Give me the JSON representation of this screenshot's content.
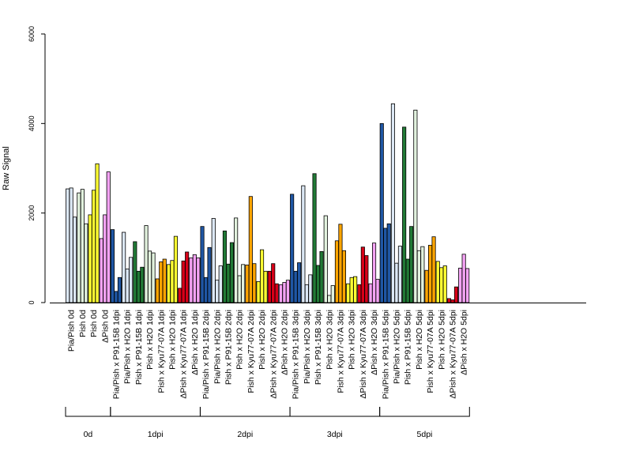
{
  "chart_data": {
    "type": "bar",
    "title": "",
    "xlabel": "",
    "ylabel": "Raw Signal",
    "ylim": [
      0,
      6000
    ],
    "y_ticks": [
      0,
      2000,
      4000,
      6000
    ],
    "grid": false,
    "legend": "none",
    "colors": {
      "Pia/Pish": "#dce8f5",
      "Pish": "#e2f2de",
      "Pish-0d": "#ffff33",
      "dPish-0d": "#f4a3f4",
      "Pia/Pish x P91-15B": "#1f57a5",
      "Pia/Pish x H2O": "#dce8f5",
      "Pish x P91-15B": "#217a36",
      "Pish x H2O": "#e2f2de",
      "Pish x Kyu77-07A": "#ffa500",
      "Pish x H2O yellow": "#ffff33",
      "dPish x Kyu77-07A": "#d80018",
      "dPish x H2O": "#f4a3f4"
    },
    "categories": [
      "Pia/Pish 0d",
      "Pish 0d",
      "Pish 0d",
      "ΔPish 0d",
      "Pia/Pish x P91-15B 1dpi",
      "Pia/Pish x H2O 1dpi",
      "Pish x P91-15B 1dpi",
      "Pish x H2O 1dpi",
      "Pish x Kyu77-07A 1dpi",
      "Pish x H2O 1dpi",
      "ΔPish x Kyu77-07A 1dpi",
      "ΔPish x H2O 1dpi",
      "Pia/Pish x P91-15B 2dpi",
      "Pia/Pish x H2O 2dpi",
      "Pish x P91-15B 2dpi",
      "Pish x H2O 2dpi",
      "Pish x Kyu77-07A 2dpi",
      "Pish x H2O 2dpi",
      "ΔPish x Kyu77-07A 2dpi",
      "ΔPish x H2O 2dpi",
      "Pia/Pish x P91-15B 3dpi",
      "Pia/Pish x H2O 3dpi",
      "Pish x P91-15B 3dpi",
      "Pish x H2O 3dpi",
      "Pish x Kyu77-07A 3dpi",
      "Pish x H2O 3dpi",
      "ΔPish x Kyu77-07A 3dpi",
      "ΔPish x H2O 3dpi",
      "Pia/Pish x P91-15B 5dpi",
      "Pia/Pish x H2O 5dpi",
      "Pish x P91-15B 5dpi",
      "Pish x H2O 5dpi",
      "Pish x Kyu77-07A 5dpi",
      "Pish x H2O 5dpi",
      "ΔPish x Kyu77-07A 5dpi",
      "ΔPish x H2O 5dpi"
    ],
    "groups": [
      {
        "label": "0d",
        "start": 0,
        "end": 3
      },
      {
        "label": "1dpi",
        "start": 4,
        "end": 11
      },
      {
        "label": "2dpi",
        "start": 12,
        "end": 19
      },
      {
        "label": "3dpi",
        "start": 20,
        "end": 27
      },
      {
        "label": "5dpi",
        "start": 28,
        "end": 35
      }
    ],
    "bars": [
      {
        "category": 0,
        "color": "Pia/Pish",
        "values": [
          2540,
          2560,
          1910
        ]
      },
      {
        "category": 1,
        "color": "Pish",
        "values": [
          2450,
          2530,
          1760
        ]
      },
      {
        "category": 2,
        "color": "Pish-0d",
        "values": [
          1960,
          2510,
          3100
        ]
      },
      {
        "category": 3,
        "color": "dPish-0d",
        "values": [
          1430,
          1960,
          2920
        ]
      },
      {
        "category": 4,
        "color": "Pia/Pish x P91-15B",
        "values": [
          1630,
          250,
          560
        ]
      },
      {
        "category": 5,
        "color": "Pia/Pish x H2O",
        "values": [
          1570,
          750,
          1010
        ]
      },
      {
        "category": 6,
        "color": "Pish x P91-15B",
        "values": [
          1360,
          700,
          790
        ]
      },
      {
        "category": 7,
        "color": "Pish x H2O",
        "values": [
          1720,
          1150,
          1110
        ]
      },
      {
        "category": 8,
        "color": "Pish x Kyu77-07A",
        "values": [
          530,
          910,
          970
        ]
      },
      {
        "category": 9,
        "color": "Pish x H2O yellow",
        "values": [
          850,
          940,
          1480
        ]
      },
      {
        "category": 10,
        "color": "dPish x Kyu77-07A",
        "values": [
          320,
          930,
          1130
        ]
      },
      {
        "category": 11,
        "color": "dPish x H2O",
        "values": [
          1000,
          1070,
          1000
        ]
      },
      {
        "category": 12,
        "color": "Pia/Pish x P91-15B",
        "values": [
          1700,
          560,
          1230
        ]
      },
      {
        "category": 13,
        "color": "Pia/Pish x H2O",
        "values": [
          1880,
          500,
          820
        ]
      },
      {
        "category": 14,
        "color": "Pish x P91-15B",
        "values": [
          1600,
          860,
          1340
        ]
      },
      {
        "category": 15,
        "color": "Pish x H2O",
        "values": [
          1890,
          600,
          850
        ]
      },
      {
        "category": 16,
        "color": "Pish x Kyu77-07A",
        "values": [
          840,
          2370,
          870
        ]
      },
      {
        "category": 17,
        "color": "Pish x H2O yellow",
        "values": [
          470,
          1180,
          700
        ]
      },
      {
        "category": 18,
        "color": "dPish x Kyu77-07A",
        "values": [
          700,
          870,
          420
        ]
      },
      {
        "category": 19,
        "color": "dPish x H2O",
        "values": [
          400,
          450,
          500
        ]
      },
      {
        "category": 20,
        "color": "Pia/Pish x P91-15B",
        "values": [
          2420,
          700,
          890
        ]
      },
      {
        "category": 21,
        "color": "Pia/Pish x H2O",
        "values": [
          2610,
          400,
          620
        ]
      },
      {
        "category": 22,
        "color": "Pish x P91-15B",
        "values": [
          2880,
          830,
          1140
        ]
      },
      {
        "category": 23,
        "color": "Pish x H2O",
        "values": [
          1940,
          160,
          380
        ]
      },
      {
        "category": 24,
        "color": "Pish x Kyu77-07A",
        "values": [
          1380,
          1750,
          1160
        ]
      },
      {
        "category": 25,
        "color": "Pish x H2O yellow",
        "values": [
          420,
          560,
          580
        ]
      },
      {
        "category": 26,
        "color": "dPish x Kyu77-07A",
        "values": [
          400,
          1240,
          1050
        ]
      },
      {
        "category": 27,
        "color": "dPish x H2O",
        "values": [
          420,
          1330,
          520
        ]
      },
      {
        "category": 28,
        "color": "Pia/Pish x P91-15B",
        "values": [
          4000,
          1660,
          1760
        ]
      },
      {
        "category": 29,
        "color": "Pia/Pish x H2O",
        "values": [
          4440,
          880,
          1260
        ]
      },
      {
        "category": 30,
        "color": "Pish x P91-15B",
        "values": [
          3920,
          970,
          1700
        ]
      },
      {
        "category": 31,
        "color": "Pish x H2O",
        "values": [
          4300,
          1160,
          1250
        ]
      },
      {
        "category": 32,
        "color": "Pish x Kyu77-07A",
        "values": [
          720,
          1280,
          1470
        ]
      },
      {
        "category": 33,
        "color": "Pish x H2O yellow",
        "values": [
          920,
          780,
          820
        ]
      },
      {
        "category": 34,
        "color": "dPish x Kyu77-07A",
        "values": [
          90,
          60,
          350
        ]
      },
      {
        "category": 35,
        "color": "dPish x H2O",
        "values": [
          770,
          1080,
          760
        ]
      }
    ]
  }
}
